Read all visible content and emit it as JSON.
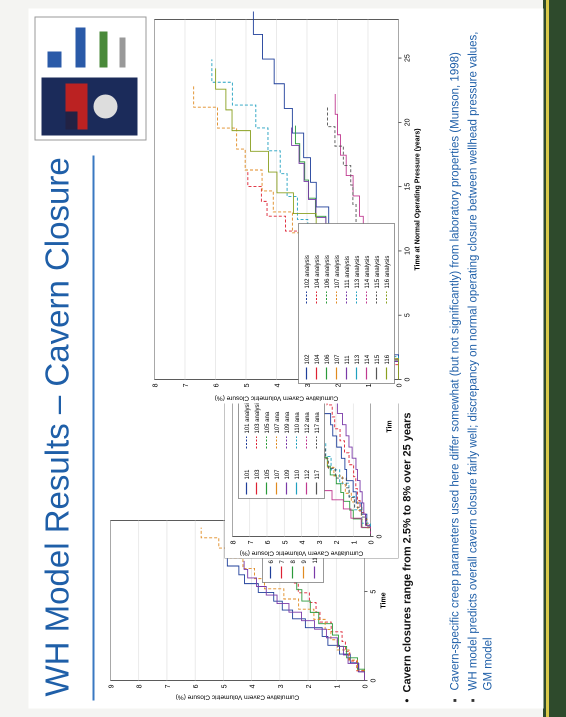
{
  "title": "WH Model Results – Cavern Closure",
  "charts": [
    {
      "ylabel": "Cumulative Cavern Volumetric Closure (%)",
      "xlabel": "Time",
      "xlim": [
        0,
        9
      ],
      "xticks": [
        0,
        5
      ],
      "ylim": [
        0,
        9
      ],
      "yticks": [
        0,
        1,
        2,
        3,
        4,
        5,
        6,
        7,
        8,
        9
      ],
      "legend": [
        "6",
        "7",
        "8",
        "9",
        "11"
      ]
    },
    {
      "ylabel": "Cumulative Cavern Volumetric Closure (%)",
      "xlabel": "Tim",
      "xlim": [
        0,
        8
      ],
      "xticks": [
        0,
        5
      ],
      "ylim": [
        0,
        8
      ],
      "yticks": [
        0,
        1,
        2,
        3,
        4,
        5,
        6,
        7,
        8
      ],
      "legend": [
        "101",
        "103",
        "105",
        "107",
        "109",
        "110",
        "112",
        "117"
      ],
      "legend_analysis": [
        "101 analysis",
        "103 analysis",
        "105 ana",
        "107 ana",
        "109 ana",
        "110 ana",
        "112 ana",
        "117 ana"
      ]
    },
    {
      "ylabel": "Cumulative Cavern Volumetric Closure (%)",
      "xlabel": "Time at Normal Operating Pressure (years)",
      "xlim": [
        0,
        28
      ],
      "xticks": [
        0,
        5,
        10,
        15,
        20,
        25
      ],
      "ylim": [
        0,
        8
      ],
      "yticks": [
        0,
        1,
        2,
        3,
        4,
        5,
        6,
        7,
        8
      ],
      "legend": [
        "102",
        "104",
        "106",
        "107",
        "111",
        "113",
        "114",
        "115",
        "116"
      ],
      "legend_analysis": [
        "102 analysis",
        "104 analysis",
        "106 analysis",
        "107 analysis",
        "111 analysis",
        "113 analysis",
        "114 analysis",
        "115 analysis",
        "116 analysis"
      ]
    }
  ],
  "note": "Cavern closures range from 2.5% to 8% over 25 years",
  "bullets": [
    "Cavern-specific creep parameters used here differ somewhat (but not significantly) from laboratory properties (Munson, 1998)",
    "WH model predicts overall cavern closure fairly well; discrepancy on normal operating closure between wellhead pressure values, GM model"
  ]
}
